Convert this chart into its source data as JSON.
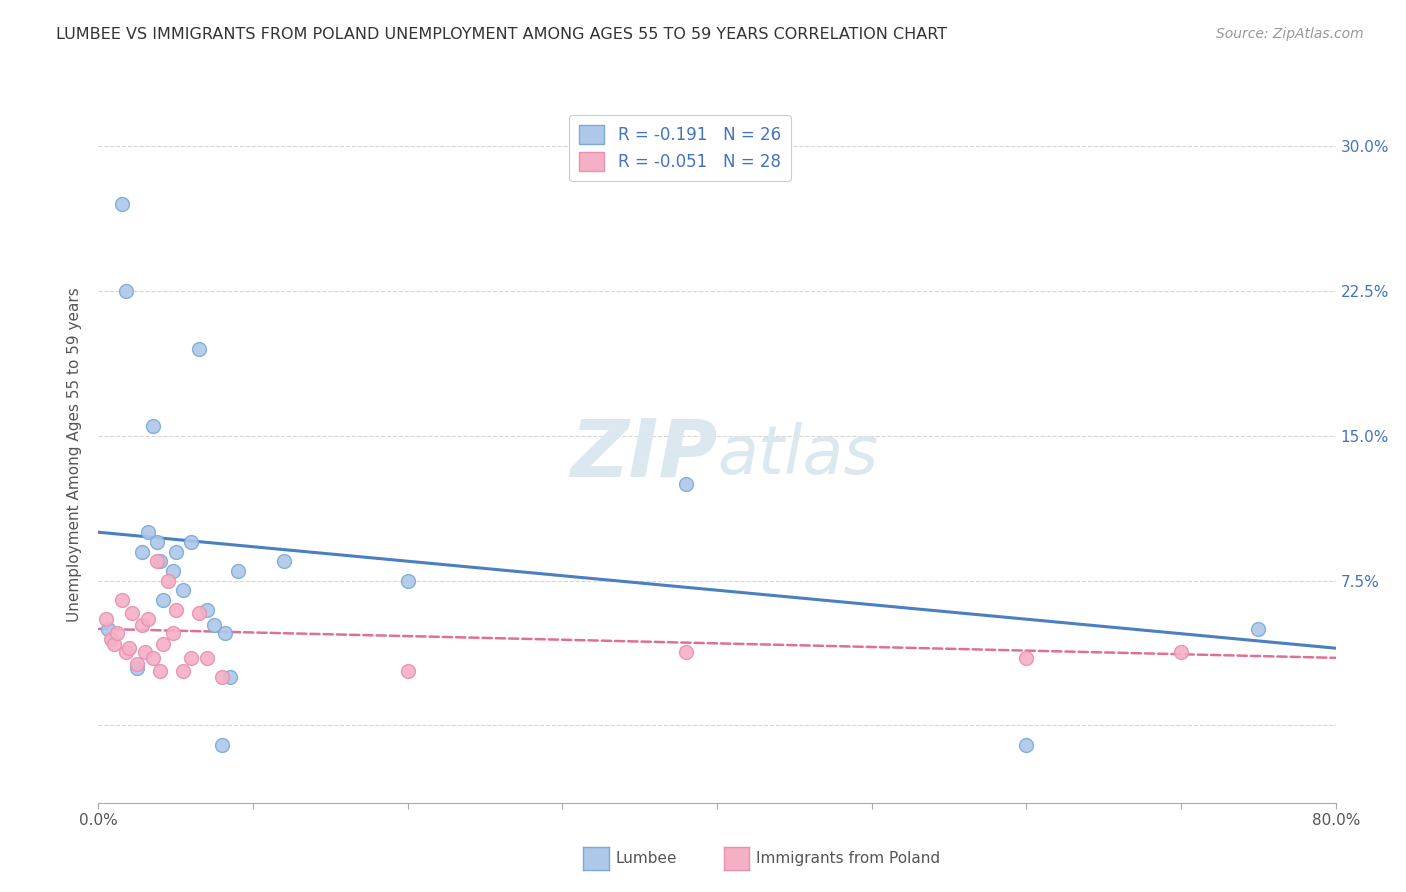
{
  "title": "LUMBEE VS IMMIGRANTS FROM POLAND UNEMPLOYMENT AMONG AGES 55 TO 59 YEARS CORRELATION CHART",
  "source": "Source: ZipAtlas.com",
  "ylabel": "Unemployment Among Ages 55 to 59 years",
  "xlim": [
    0.0,
    0.8
  ],
  "ylim": [
    -0.04,
    0.32
  ],
  "yticks": [
    0.0,
    0.075,
    0.15,
    0.225,
    0.3
  ],
  "ytick_labels_right": [
    "",
    "7.5%",
    "15.0%",
    "22.5%",
    "30.0%"
  ],
  "xticks": [
    0.0,
    0.1,
    0.2,
    0.3,
    0.4,
    0.5,
    0.6,
    0.7,
    0.8
  ],
  "xtick_labels": [
    "0.0%",
    "",
    "",
    "",
    "",
    "",
    "",
    "",
    "80.0%"
  ],
  "lumbee_R": -0.191,
  "lumbee_N": 26,
  "poland_R": -0.051,
  "poland_N": 28,
  "lumbee_color": "#adc8e8",
  "poland_color": "#f5b0c5",
  "lumbee_line_color": "#4a7fc1",
  "poland_line_color": "#e07090",
  "background_color": "#ffffff",
  "grid_color": "#cccccc",
  "title_color": "#333333",
  "axis_color": "#4472c4",
  "watermark_color": "#dce8f0",
  "lumbee_x": [
    0.006,
    0.015,
    0.018,
    0.025,
    0.028,
    0.032,
    0.035,
    0.038,
    0.04,
    0.042,
    0.048,
    0.05,
    0.055,
    0.06,
    0.065,
    0.07,
    0.075,
    0.08,
    0.082,
    0.085,
    0.09,
    0.12,
    0.2,
    0.38,
    0.6,
    0.75
  ],
  "lumbee_y": [
    0.05,
    0.27,
    0.225,
    0.03,
    0.09,
    0.1,
    0.155,
    0.095,
    0.085,
    0.065,
    0.08,
    0.09,
    0.07,
    0.095,
    0.195,
    0.06,
    0.052,
    -0.01,
    0.048,
    0.025,
    0.08,
    0.085,
    0.075,
    0.125,
    -0.01,
    0.05
  ],
  "poland_x": [
    0.005,
    0.008,
    0.01,
    0.012,
    0.015,
    0.018,
    0.02,
    0.022,
    0.025,
    0.028,
    0.03,
    0.032,
    0.035,
    0.038,
    0.04,
    0.042,
    0.045,
    0.048,
    0.05,
    0.055,
    0.06,
    0.065,
    0.07,
    0.08,
    0.2,
    0.38,
    0.6,
    0.7
  ],
  "poland_y": [
    0.055,
    0.045,
    0.042,
    0.048,
    0.065,
    0.038,
    0.04,
    0.058,
    0.032,
    0.052,
    0.038,
    0.055,
    0.035,
    0.085,
    0.028,
    0.042,
    0.075,
    0.048,
    0.06,
    0.028,
    0.035,
    0.058,
    0.035,
    0.025,
    0.028,
    0.038,
    0.035,
    0.038
  ],
  "lumbee_line_x_start": 0.0,
  "lumbee_line_x_end": 0.8,
  "lumbee_line_y_start": 0.1,
  "lumbee_line_y_end": 0.04,
  "poland_line_x_start": 0.0,
  "poland_line_x_end": 0.8,
  "poland_line_y_start": 0.05,
  "poland_line_y_end": 0.035,
  "legend_label1": "Lumbee",
  "legend_label2": "Immigrants from Poland",
  "marker_size": 100,
  "marker_edge_width": 1.0,
  "lumbee_edge_color": "#7aaad8",
  "poland_edge_color": "#e890b0"
}
